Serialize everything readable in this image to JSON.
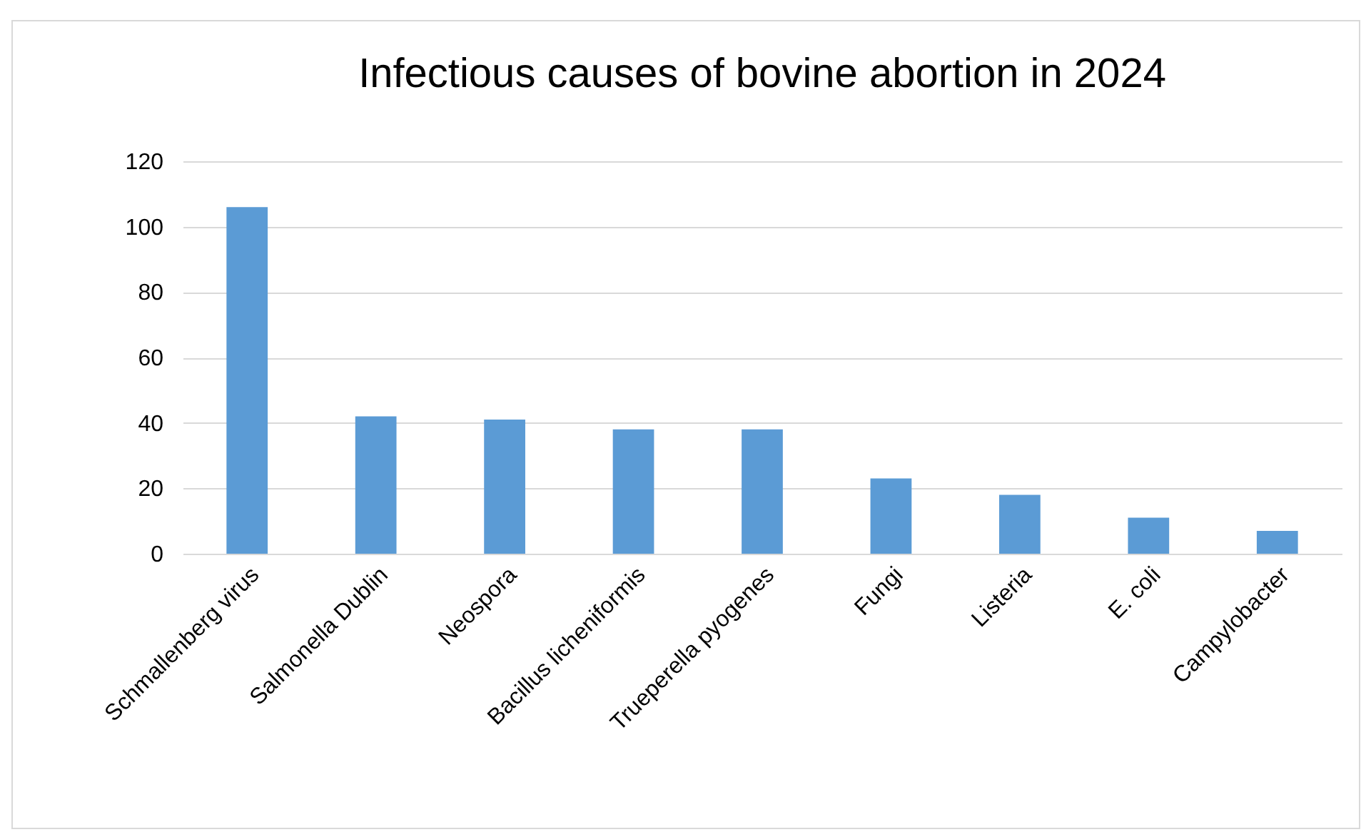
{
  "chart_data": {
    "type": "bar",
    "title": "Infectious causes of bovine abortion in 2024",
    "categories": [
      "Schmallenberg virus",
      "Salmonella Dublin",
      "Neospora",
      "Bacillus licheniformis",
      "Trueperella pyogenes",
      "Fungi",
      "Listeria",
      "E. coli",
      "Campylobacter"
    ],
    "values": [
      106,
      42,
      41,
      38,
      38,
      23,
      18,
      11,
      7
    ],
    "color": "#5b9bd5",
    "ylim": [
      0,
      120
    ],
    "yticks": [
      0,
      20,
      40,
      60,
      80,
      100,
      120
    ],
    "grid": "y"
  }
}
